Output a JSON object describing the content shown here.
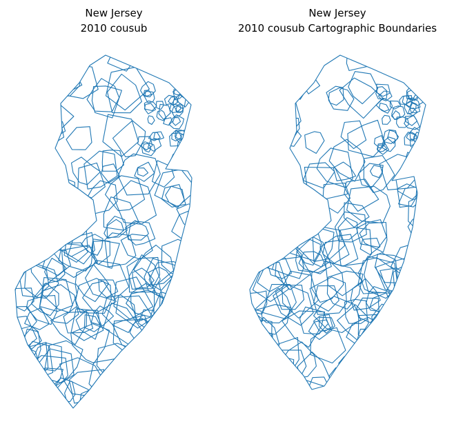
{
  "maps": [
    {
      "title": "New Jersey",
      "subtitle": "2010 cousub"
    },
    {
      "title": "New Jersey",
      "subtitle": "2010 cousub Cartographic Boundaries"
    }
  ]
}
